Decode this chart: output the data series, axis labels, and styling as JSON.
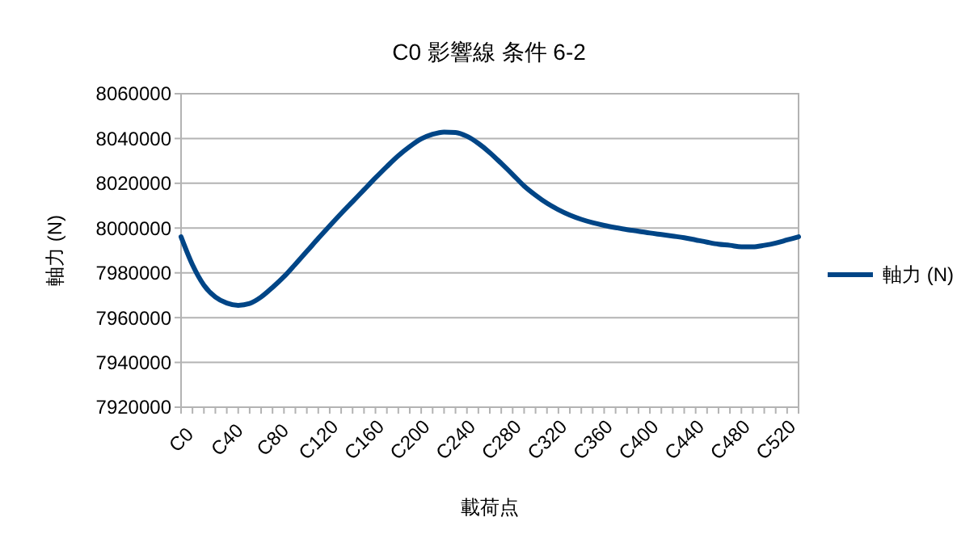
{
  "chart_data": {
    "type": "line",
    "title": "C0 影響線 条件 6-2",
    "xlabel": "載荷点",
    "ylabel": "軸力 (N)",
    "categories": [
      "C0",
      null,
      null,
      null,
      "C40",
      null,
      null,
      null,
      "C80",
      null,
      null,
      null,
      "C120",
      null,
      null,
      null,
      "C160",
      null,
      null,
      null,
      "C200",
      null,
      null,
      null,
      "C240",
      null,
      null,
      null,
      "C280",
      null,
      null,
      null,
      "C320",
      null,
      null,
      null,
      "C360",
      null,
      null,
      null,
      "C400",
      null,
      null,
      null,
      "C440",
      null,
      null,
      null,
      "C480",
      null,
      null,
      null,
      "C520",
      null,
      null
    ],
    "series": [
      {
        "name": "軸力 (N)",
        "color": "#004586",
        "values": [
          7996100,
          7983600,
          7974500,
          7969200,
          7966500,
          7965500,
          7966300,
          7969200,
          7973500,
          7978300,
          7983900,
          7989600,
          7995400,
          8001000,
          8006500,
          8011800,
          8017100,
          8022400,
          8027500,
          8032300,
          8036400,
          8039800,
          8041900,
          8042900,
          8042700,
          8041000,
          8037800,
          8033700,
          8028900,
          8023900,
          8018800,
          8014700,
          8011100,
          8008200,
          8005800,
          8003900,
          8002400,
          8001200,
          8000200,
          7999300,
          7998600,
          7997800,
          7997100,
          7996400,
          7995700,
          7994700,
          7993700,
          7992800,
          7992300,
          7991600,
          7991600,
          7992300,
          7993300,
          7994700,
          7996100
        ]
      }
    ],
    "ylim": [
      7920000,
      8060000
    ],
    "yticks": [
      7920000,
      7940000,
      7960000,
      7980000,
      8000000,
      8020000,
      8040000,
      8060000
    ],
    "grid": "y",
    "legend": "right",
    "marker": "none",
    "line_style": "solid"
  }
}
